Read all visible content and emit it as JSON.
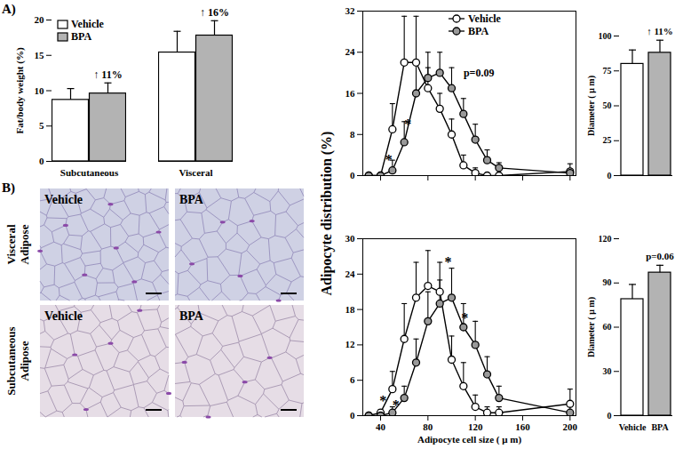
{
  "chart_data": [
    {
      "type": "bar",
      "title": "A)",
      "categories": [
        "Subcutaneous",
        "Visceral"
      ],
      "series": [
        {
          "name": "Vehicle",
          "color": "#ffffff",
          "values": [
            8.7,
            15.4
          ],
          "errors": [
            1.6,
            3.0
          ]
        },
        {
          "name": "BPA",
          "color": "#b3b3b3",
          "values": [
            9.6,
            17.8
          ],
          "errors": [
            1.5,
            2.1
          ]
        }
      ],
      "ylabel": "Fat/body weight (%)",
      "ylim": [
        0,
        20
      ],
      "yticks": [
        0,
        5,
        10,
        15,
        20
      ],
      "legend": "top-left",
      "annotations": [
        {
          "category": "Subcutaneous",
          "series": "BPA",
          "text": "↑ 11%"
        },
        {
          "category": "Visceral",
          "series": "BPA",
          "text": "↑ 16%"
        }
      ]
    },
    {
      "type": "image",
      "title": "B)",
      "rows": [
        "Visceral Adipose",
        "Subcutaneous Adipose"
      ],
      "columns": [
        "Vehicle",
        "BPA"
      ]
    },
    {
      "type": "line",
      "x": [
        30,
        40,
        50,
        60,
        70,
        80,
        90,
        100,
        110,
        120,
        130,
        140,
        200
      ],
      "series": [
        {
          "name": "Vehicle",
          "color": "#ffffff",
          "values": [
            0,
            0,
            9,
            22,
            22,
            17,
            13,
            8,
            2,
            0.5,
            0,
            0,
            0.8
          ],
          "errors": [
            0,
            0,
            5,
            9,
            9,
            4,
            3,
            3,
            2,
            1,
            0,
            0,
            1.5
          ]
        },
        {
          "name": "BPA",
          "color": "#999999",
          "values": [
            0,
            0,
            1,
            6.5,
            16,
            19,
            20,
            17,
            12,
            7,
            3,
            1.5,
            0.5
          ],
          "errors": [
            0,
            0,
            2,
            4,
            6,
            5,
            4,
            4,
            3,
            3,
            2,
            1,
            0.5
          ]
        }
      ],
      "ylabel": "Adipocyte distribution (%)",
      "xlim": [
        25,
        205
      ],
      "xticks": [
        40,
        80,
        120,
        160,
        200
      ],
      "ylim": [
        0,
        32
      ],
      "yticks": [
        0,
        8,
        16,
        24,
        32
      ],
      "marker": "circle",
      "legend": "top",
      "tick_labels": "y",
      "annotations": [
        {
          "x": 47,
          "y": 3,
          "text": "*"
        },
        {
          "x": 63,
          "y": 10,
          "text": "*"
        },
        {
          "x": 123,
          "y": 20,
          "text": "p=0.09"
        }
      ]
    },
    {
      "type": "line",
      "x": [
        30,
        40,
        50,
        60,
        70,
        80,
        90,
        100,
        110,
        120,
        130,
        140,
        200
      ],
      "series": [
        {
          "name": "Vehicle",
          "color": "#ffffff",
          "values": [
            0,
            0.5,
            4.5,
            13,
            20,
            22,
            21,
            9.5,
            5,
            1.5,
            0.5,
            0.5,
            2
          ],
          "errors": [
            0,
            0.5,
            3,
            6,
            6,
            6,
            5,
            4,
            4,
            2,
            1,
            1,
            2.5
          ]
        },
        {
          "name": "BPA",
          "color": "#999999",
          "values": [
            0,
            0,
            0.5,
            3,
            9,
            16,
            19,
            20,
            15,
            12,
            7,
            3,
            0.5
          ],
          "errors": [
            0,
            0,
            1,
            2,
            4,
            5,
            4,
            5,
            4,
            4,
            3,
            2,
            1
          ]
        }
      ],
      "xlabel": "Adipocyte cell size ( μ m)",
      "xlim": [
        25,
        205
      ],
      "xticks": [
        40,
        80,
        120,
        160,
        200
      ],
      "ylim": [
        0,
        30
      ],
      "yticks": [
        0,
        6,
        12,
        18,
        24,
        30
      ],
      "marker": "circle",
      "annotations": [
        {
          "x": 42,
          "y": 2.5,
          "text": "*"
        },
        {
          "x": 53,
          "y": 1.8,
          "text": "*"
        },
        {
          "x": 97,
          "y": 26,
          "text": "*"
        },
        {
          "x": 111,
          "y": 16.5,
          "text": "*"
        }
      ]
    },
    {
      "type": "bar",
      "categories": [
        "Vehicle",
        "BPA"
      ],
      "values": [
        80,
        88
      ],
      "errors": [
        10,
        9
      ],
      "colors": [
        "#ffffff",
        "#b3b3b3"
      ],
      "ylabel": "Diameter ( μ m)",
      "ylim": [
        0,
        100
      ],
      "yticks": [
        0,
        25,
        50,
        75,
        100
      ],
      "tick_labels": "y",
      "annotations": [
        {
          "category": "BPA",
          "text": "↑ 11%"
        }
      ]
    },
    {
      "type": "bar",
      "categories": [
        "Vehicle",
        "BPA"
      ],
      "values": [
        79,
        97
      ],
      "errors": [
        10,
        5
      ],
      "colors": [
        "#ffffff",
        "#b3b3b3"
      ],
      "ylabel": "Diameter ( μ m)",
      "ylim": [
        0,
        120
      ],
      "yticks": [
        0,
        30,
        60,
        90,
        120
      ],
      "annotations": [
        {
          "category": "BPA",
          "text": "p=0.06"
        }
      ]
    }
  ]
}
